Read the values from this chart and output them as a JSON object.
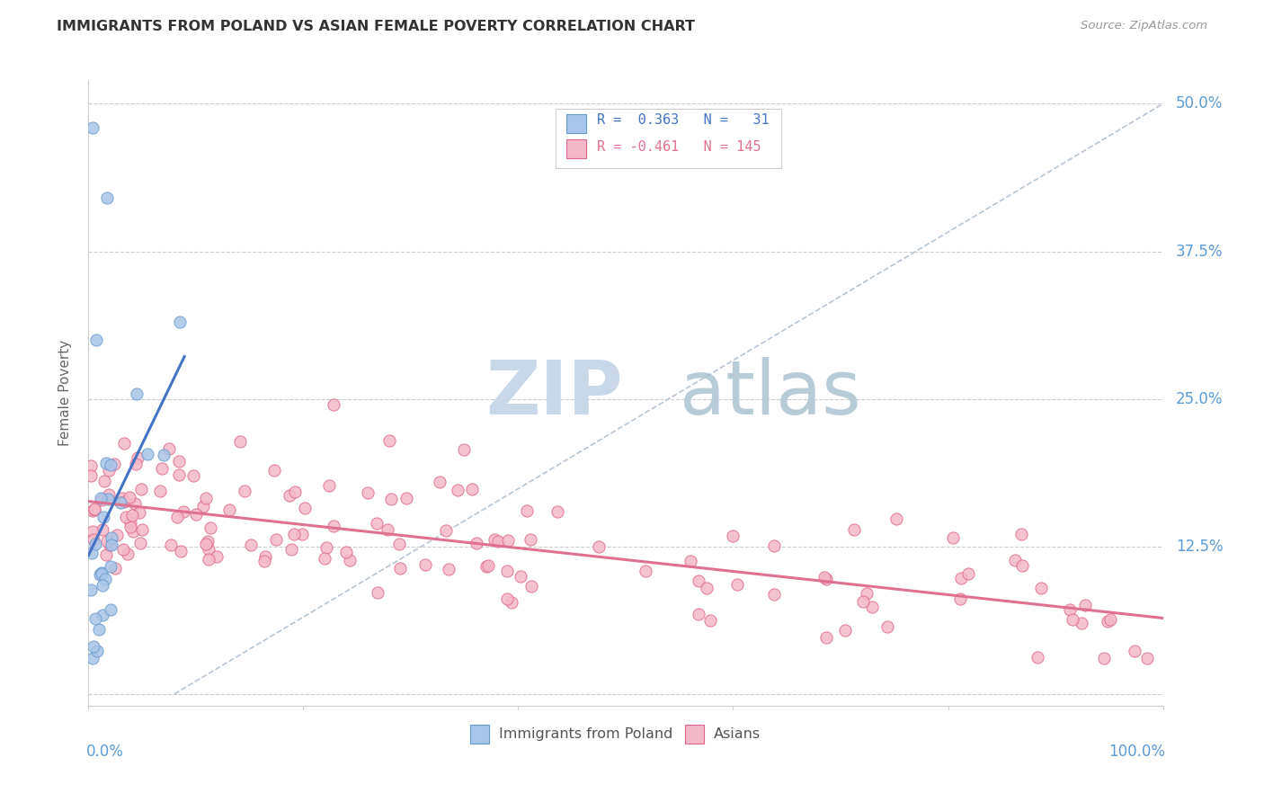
{
  "title": "IMMIGRANTS FROM POLAND VS ASIAN FEMALE POVERTY CORRELATION CHART",
  "source": "Source: ZipAtlas.com",
  "ylabel": "Female Poverty",
  "legend_label1": "Immigrants from Poland",
  "legend_label2": "Asians",
  "R1": 0.363,
  "N1": 31,
  "R2": -0.461,
  "N2": 145,
  "color_poland_fill": "#a8c4e8",
  "color_poland_edge": "#6699cc",
  "color_asian_fill": "#f4b8c8",
  "color_asian_edge": "#dd6688",
  "color_trend_poland": "#4472c4",
  "color_trend_asian": "#e07090",
  "color_diag": "#aabbcc",
  "watermark_zip_color": "#c8d8e8",
  "watermark_atlas_color": "#b8ccd8",
  "background_color": "#ffffff",
  "grid_color": "#cccccc",
  "xlim": [
    0.0,
    1.0
  ],
  "ylim": [
    -0.01,
    0.52
  ],
  "yticks": [
    0.0,
    0.125,
    0.25,
    0.375,
    0.5
  ],
  "ytick_labels": [
    "",
    "12.5%",
    "25.0%",
    "37.5%",
    "50.0%"
  ],
  "title_color": "#333333",
  "source_color": "#999999",
  "axis_label_color": "#5b9bd5",
  "ylabel_color": "#666666"
}
